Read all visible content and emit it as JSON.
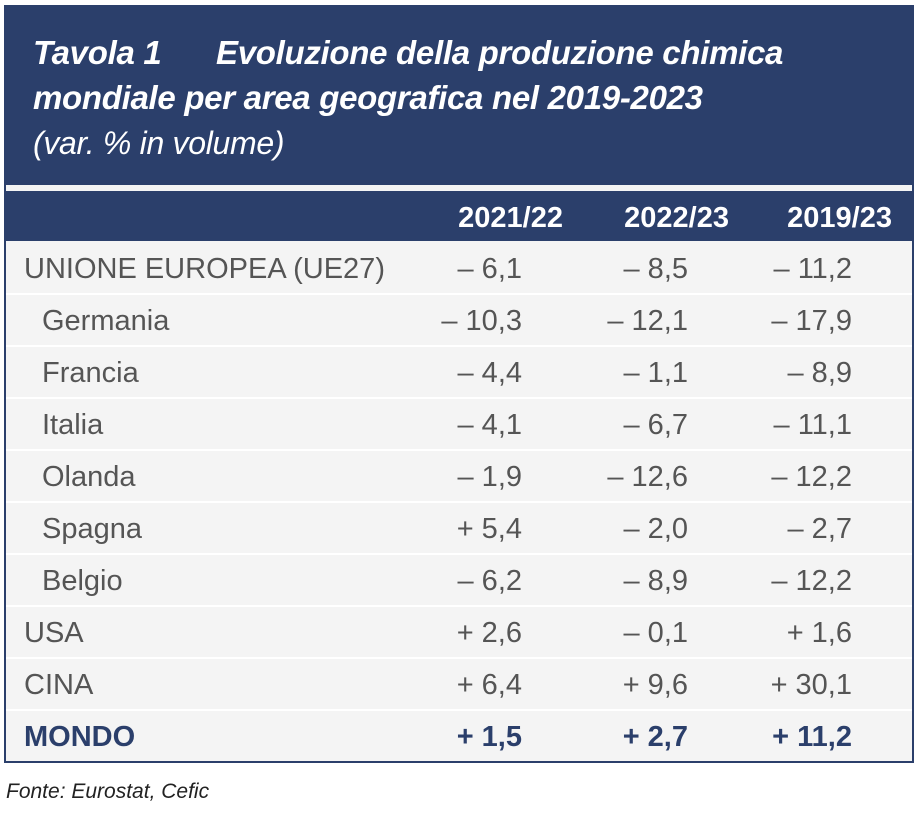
{
  "title": {
    "number": "Tavola 1",
    "line1": "Evoluzione della produzione chimica",
    "line2": "mondiale per area geografica nel 2019-2023",
    "subtitle": "(var. % in volume)"
  },
  "columns": [
    "2021/22",
    "2022/23",
    "2019/23"
  ],
  "rows": [
    {
      "label": "UNIONE EUROPEA (UE27)",
      "values": [
        "– 6,1",
        "– 8,5",
        "– 11,2"
      ]
    },
    {
      "label": "Germania",
      "values": [
        "– 10,3",
        "– 12,1",
        "– 17,9"
      ]
    },
    {
      "label": "Francia",
      "values": [
        "– 4,4",
        "– 1,1",
        "– 8,9"
      ]
    },
    {
      "label": "Italia",
      "values": [
        "– 4,1",
        "– 6,7",
        "– 11,1"
      ]
    },
    {
      "label": "Olanda",
      "values": [
        "– 1,9",
        "– 12,6",
        "– 12,2"
      ]
    },
    {
      "label": "Spagna",
      "values": [
        "+ 5,4",
        "– 2,0",
        "– 2,7"
      ]
    },
    {
      "label": "Belgio",
      "values": [
        "– 6,2",
        "– 8,9",
        "– 12,2"
      ]
    },
    {
      "label": "USA",
      "values": [
        "+ 2,6",
        "– 0,1",
        "+ 1,6"
      ]
    },
    {
      "label": "CINA",
      "values": [
        "+ 6,4",
        "+ 9,6",
        "+ 30,1"
      ]
    },
    {
      "label": "MONDO",
      "values": [
        "+ 1,5",
        "+ 2,7",
        "+ 11,2"
      ]
    }
  ],
  "source": "Fonte: Eurostat, Cefic",
  "colors": {
    "header_bg": "#2b3f6b",
    "row_bg": "#f4f4f4",
    "total_text": "#2b3f6b"
  }
}
